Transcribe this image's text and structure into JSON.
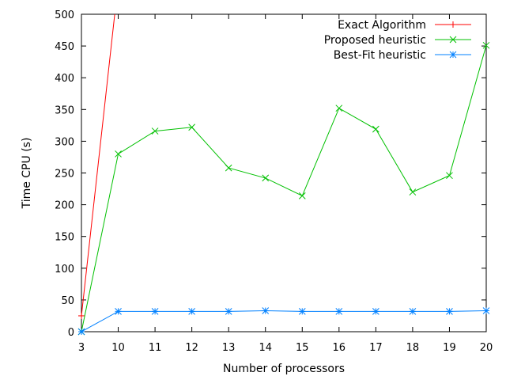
{
  "chart_data": {
    "type": "line",
    "title": "",
    "xlabel": "Number of processors",
    "ylabel": "Time CPU (s)",
    "x_ticks": [
      "3",
      "10",
      "11",
      "12",
      "13",
      "14",
      "15",
      "16",
      "17",
      "18",
      "19",
      "20"
    ],
    "y_ticks": [
      "0",
      "50",
      "100",
      "150",
      "200",
      "250",
      "300",
      "350",
      "400",
      "450",
      "500"
    ],
    "ylim": [
      0,
      500
    ],
    "grid": false,
    "legend_position": "top-right",
    "series": [
      {
        "name": "Exact Algorithm",
        "color": "#ff0000",
        "marker": "plus",
        "x": [
          "3",
          "10"
        ],
        "y": [
          25,
          550
        ]
      },
      {
        "name": "Proposed heuristic",
        "color": "#00c000",
        "marker": "x",
        "x": [
          "3",
          "10",
          "11",
          "12",
          "13",
          "14",
          "15",
          "16",
          "17",
          "18",
          "19",
          "20"
        ],
        "y": [
          0,
          280,
          316,
          322,
          258,
          242,
          214,
          352,
          319,
          220,
          246,
          451
        ]
      },
      {
        "name": "Best-Fit heuristic",
        "color": "#0080ff",
        "marker": "star",
        "x": [
          "3",
          "10",
          "11",
          "12",
          "13",
          "14",
          "15",
          "16",
          "17",
          "18",
          "19",
          "20"
        ],
        "y": [
          0,
          32,
          32,
          32,
          32,
          33,
          32,
          32,
          32,
          32,
          32,
          33
        ]
      }
    ]
  }
}
